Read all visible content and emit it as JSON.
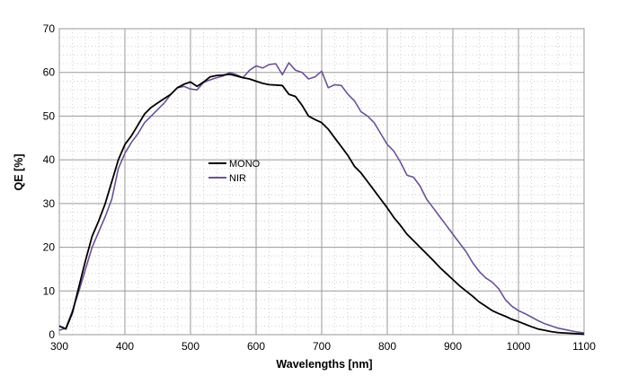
{
  "chart_data": {
    "type": "line",
    "title": "",
    "xlabel": "Wavelengths [nm]",
    "ylabel": "QE [%]",
    "xlim": [
      300,
      1100
    ],
    "ylim": [
      0,
      70
    ],
    "x_ticks": [
      300,
      400,
      500,
      600,
      700,
      800,
      900,
      1000,
      1100
    ],
    "y_ticks": [
      0,
      10,
      20,
      30,
      40,
      50,
      60,
      70
    ],
    "grid": true,
    "legend_position": "center-left",
    "series": [
      {
        "name": "MONO",
        "color": "#000000",
        "points": [
          [
            300,
            2
          ],
          [
            310,
            1.3
          ],
          [
            320,
            5
          ],
          [
            330,
            11
          ],
          [
            340,
            17
          ],
          [
            350,
            22.5
          ],
          [
            360,
            26
          ],
          [
            370,
            30
          ],
          [
            380,
            35
          ],
          [
            390,
            40
          ],
          [
            400,
            43.5
          ],
          [
            410,
            45.5
          ],
          [
            420,
            48
          ],
          [
            430,
            50.5
          ],
          [
            440,
            52
          ],
          [
            450,
            53
          ],
          [
            460,
            54
          ],
          [
            470,
            55
          ],
          [
            480,
            56.5
          ],
          [
            490,
            57.3
          ],
          [
            500,
            57.8
          ],
          [
            510,
            56.8
          ],
          [
            520,
            57.8
          ],
          [
            530,
            59
          ],
          [
            540,
            59.3
          ],
          [
            550,
            59.4
          ],
          [
            560,
            59.6
          ],
          [
            570,
            59.2
          ],
          [
            580,
            58.8
          ],
          [
            590,
            58.5
          ],
          [
            600,
            58
          ],
          [
            610,
            57.5
          ],
          [
            620,
            57.2
          ],
          [
            630,
            57.1
          ],
          [
            640,
            57
          ],
          [
            650,
            55
          ],
          [
            660,
            54.5
          ],
          [
            670,
            52.5
          ],
          [
            680,
            50
          ],
          [
            690,
            49.2
          ],
          [
            700,
            48.5
          ],
          [
            710,
            47
          ],
          [
            720,
            45
          ],
          [
            730,
            43
          ],
          [
            740,
            41
          ],
          [
            750,
            38.5
          ],
          [
            760,
            37
          ],
          [
            770,
            35
          ],
          [
            780,
            33
          ],
          [
            790,
            31
          ],
          [
            800,
            29
          ],
          [
            810,
            26.8
          ],
          [
            820,
            25
          ],
          [
            830,
            23
          ],
          [
            840,
            21.5
          ],
          [
            850,
            20
          ],
          [
            860,
            18.5
          ],
          [
            870,
            17
          ],
          [
            880,
            15.4
          ],
          [
            890,
            14
          ],
          [
            900,
            12.6
          ],
          [
            910,
            11.2
          ],
          [
            920,
            10
          ],
          [
            930,
            8.8
          ],
          [
            940,
            7.5
          ],
          [
            950,
            6.5
          ],
          [
            960,
            5.5
          ],
          [
            970,
            4.8
          ],
          [
            980,
            4.2
          ],
          [
            990,
            3.5
          ],
          [
            1000,
            3
          ],
          [
            1010,
            2.4
          ],
          [
            1020,
            1.8
          ],
          [
            1030,
            1.3
          ],
          [
            1040,
            1
          ],
          [
            1050,
            0.7
          ],
          [
            1060,
            0.5
          ],
          [
            1070,
            0.4
          ],
          [
            1080,
            0.3
          ],
          [
            1090,
            0.2
          ],
          [
            1100,
            0.1
          ]
        ]
      },
      {
        "name": "NIR",
        "color": "#6a5296",
        "points": [
          [
            300,
            1
          ],
          [
            310,
            1.5
          ],
          [
            320,
            5.5
          ],
          [
            330,
            10
          ],
          [
            340,
            15
          ],
          [
            350,
            20
          ],
          [
            360,
            23.5
          ],
          [
            370,
            27
          ],
          [
            380,
            31
          ],
          [
            390,
            38
          ],
          [
            400,
            41.5
          ],
          [
            410,
            44
          ],
          [
            420,
            46
          ],
          [
            430,
            48.5
          ],
          [
            440,
            50
          ],
          [
            450,
            51.5
          ],
          [
            460,
            53
          ],
          [
            470,
            55
          ],
          [
            480,
            56.5
          ],
          [
            490,
            56.8
          ],
          [
            500,
            56.2
          ],
          [
            510,
            56
          ],
          [
            520,
            57.7
          ],
          [
            530,
            58.3
          ],
          [
            540,
            58.8
          ],
          [
            550,
            59.2
          ],
          [
            560,
            60
          ],
          [
            570,
            59.5
          ],
          [
            580,
            58.8
          ],
          [
            590,
            60.5
          ],
          [
            600,
            61.5
          ],
          [
            610,
            61
          ],
          [
            620,
            61.8
          ],
          [
            630,
            62
          ],
          [
            640,
            59.5
          ],
          [
            650,
            62.2
          ],
          [
            660,
            60.5
          ],
          [
            670,
            60
          ],
          [
            680,
            58.5
          ],
          [
            690,
            59
          ],
          [
            700,
            60.3
          ],
          [
            710,
            56.5
          ],
          [
            720,
            57.2
          ],
          [
            730,
            57
          ],
          [
            740,
            55
          ],
          [
            750,
            53.5
          ],
          [
            760,
            51
          ],
          [
            770,
            50
          ],
          [
            780,
            48.5
          ],
          [
            790,
            46
          ],
          [
            800,
            43.5
          ],
          [
            810,
            42
          ],
          [
            820,
            39.5
          ],
          [
            830,
            36.5
          ],
          [
            840,
            36
          ],
          [
            850,
            34
          ],
          [
            860,
            31
          ],
          [
            870,
            29
          ],
          [
            880,
            27
          ],
          [
            890,
            25
          ],
          [
            900,
            23
          ],
          [
            910,
            21
          ],
          [
            920,
            19
          ],
          [
            930,
            16.5
          ],
          [
            940,
            14.5
          ],
          [
            950,
            13
          ],
          [
            960,
            12
          ],
          [
            970,
            10.5
          ],
          [
            980,
            8
          ],
          [
            990,
            6.5
          ],
          [
            1000,
            5.5
          ],
          [
            1010,
            4.8
          ],
          [
            1020,
            4
          ],
          [
            1030,
            3.2
          ],
          [
            1040,
            2.5
          ],
          [
            1050,
            2
          ],
          [
            1060,
            1.5
          ],
          [
            1070,
            1.2
          ],
          [
            1080,
            0.9
          ],
          [
            1090,
            0.6
          ],
          [
            1100,
            0.4
          ]
        ]
      }
    ]
  }
}
